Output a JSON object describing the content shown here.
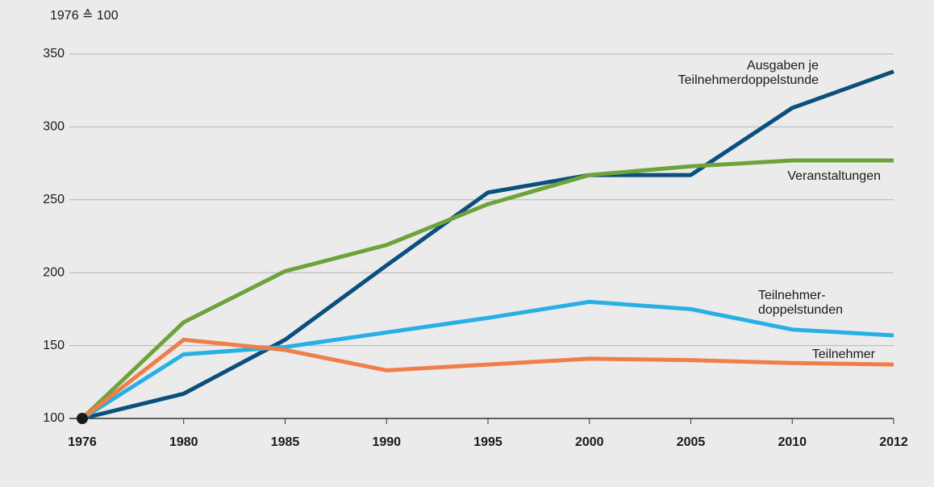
{
  "chart_data": {
    "type": "line",
    "y_axis_label": "1976 ≙ 100",
    "categories": [
      "1976",
      "1980",
      "1985",
      "1990",
      "1995",
      "2000",
      "2005",
      "2010",
      "2012"
    ],
    "ylim": [
      100,
      350
    ],
    "yticks": [
      100,
      150,
      200,
      250,
      300,
      350
    ],
    "grid": true,
    "series": [
      {
        "name": [
          "Ausgaben je",
          "Teilnehmerdoppelstunde"
        ],
        "color": "#0b4f7c",
        "values": [
          100,
          117,
          154,
          205,
          255,
          267,
          267,
          313,
          338
        ]
      },
      {
        "name": [
          "Veranstaltungen"
        ],
        "color": "#6ea23a",
        "values": [
          100,
          166,
          201,
          219,
          247,
          267,
          273,
          277,
          277
        ]
      },
      {
        "name": [
          "Teilnehmer-",
          "doppelstunden"
        ],
        "color": "#28afe4",
        "values": [
          100,
          144,
          149,
          159,
          169,
          180,
          175,
          161,
          157
        ]
      },
      {
        "name": [
          "Teilnehmer"
        ],
        "color": "#f07e4b",
        "values": [
          100,
          154,
          147,
          133,
          137,
          141,
          140,
          138,
          137
        ]
      }
    ]
  }
}
